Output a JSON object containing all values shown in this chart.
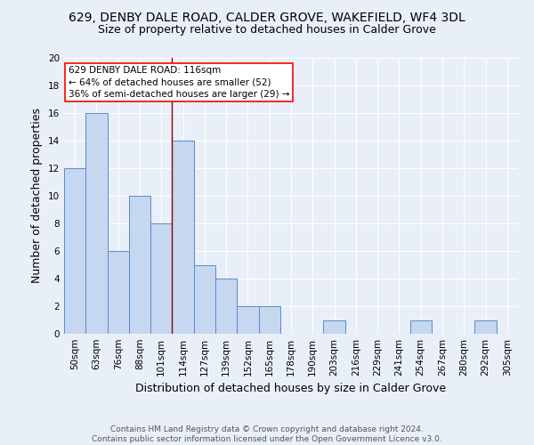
{
  "title": "629, DENBY DALE ROAD, CALDER GROVE, WAKEFIELD, WF4 3DL",
  "subtitle": "Size of property relative to detached houses in Calder Grove",
  "xlabel": "Distribution of detached houses by size in Calder Grove",
  "ylabel": "Number of detached properties",
  "footer1": "Contains HM Land Registry data © Crown copyright and database right 2024.",
  "footer2": "Contains public sector information licensed under the Open Government Licence v3.0.",
  "categories": [
    "50sqm",
    "63sqm",
    "76sqm",
    "88sqm",
    "101sqm",
    "114sqm",
    "127sqm",
    "139sqm",
    "152sqm",
    "165sqm",
    "178sqm",
    "190sqm",
    "203sqm",
    "216sqm",
    "229sqm",
    "241sqm",
    "254sqm",
    "267sqm",
    "280sqm",
    "292sqm",
    "305sqm"
  ],
  "values": [
    12,
    16,
    6,
    10,
    8,
    14,
    5,
    4,
    2,
    2,
    0,
    0,
    1,
    0,
    0,
    0,
    1,
    0,
    0,
    1,
    0
  ],
  "bar_color": "#c5d8f0",
  "bar_edge_color": "#5b8bc9",
  "vline_index": 5,
  "vline_color": "#8b0000",
  "annotation_line1": "629 DENBY DALE ROAD: 116sqm",
  "annotation_line2": "← 64% of detached houses are smaller (52)",
  "annotation_line3": "36% of semi-detached houses are larger (29) →",
  "annotation_box_color": "white",
  "annotation_box_edge": "red",
  "ylim": [
    0,
    20
  ],
  "yticks": [
    0,
    2,
    4,
    6,
    8,
    10,
    12,
    14,
    16,
    18,
    20
  ],
  "bg_color": "#e8eff8",
  "plot_bg": "#e8eff8",
  "grid_color": "white",
  "title_fontsize": 10,
  "subtitle_fontsize": 9,
  "label_fontsize": 9,
  "tick_fontsize": 7.5,
  "footer_fontsize": 6.5
}
